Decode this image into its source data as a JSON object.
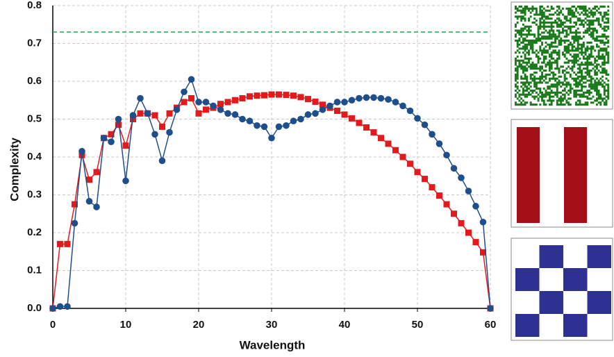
{
  "chart_data": {
    "type": "line",
    "x_label": "Wavelength",
    "y_label": "Complexity",
    "x": [
      0,
      1,
      2,
      3,
      4,
      5,
      6,
      7,
      8,
      9,
      10,
      11,
      12,
      13,
      14,
      15,
      16,
      17,
      18,
      19,
      20,
      21,
      22,
      23,
      24,
      25,
      26,
      27,
      28,
      29,
      30,
      31,
      32,
      33,
      34,
      35,
      36,
      37,
      38,
      39,
      40,
      41,
      42,
      43,
      44,
      45,
      46,
      47,
      48,
      49,
      50,
      51,
      52,
      53,
      54,
      55,
      56,
      57,
      58,
      59,
      60
    ],
    "series": [
      {
        "color": "#e31a1c",
        "marker": "square",
        "values": [
          0,
          0.17,
          0.17,
          0.275,
          0.405,
          0.34,
          0.36,
          0.45,
          0.46,
          0.485,
          0.43,
          0.5,
          0.515,
          0.515,
          0.51,
          0.48,
          0.515,
          0.53,
          0.545,
          0.555,
          0.515,
          0.525,
          0.53,
          0.54,
          0.545,
          0.55,
          0.555,
          0.56,
          0.562,
          0.563,
          0.565,
          0.565,
          0.564,
          0.562,
          0.558,
          0.553,
          0.546,
          0.538,
          0.53,
          0.522,
          0.512,
          0.502,
          0.49,
          0.478,
          0.465,
          0.45,
          0.435,
          0.418,
          0.4,
          0.382,
          0.36,
          0.342,
          0.32,
          0.298,
          0.275,
          0.25,
          0.225,
          0.2,
          0.175,
          0.148,
          0
        ]
      },
      {
        "color": "#1f4e8c",
        "marker": "circle",
        "values": [
          0,
          0.005,
          0.005,
          0.225,
          0.415,
          0.283,
          0.268,
          0.45,
          0.44,
          0.5,
          0.337,
          0.51,
          0.555,
          0.515,
          0.46,
          0.39,
          0.465,
          0.525,
          0.572,
          0.605,
          0.545,
          0.545,
          0.535,
          0.525,
          0.515,
          0.512,
          0.5,
          0.495,
          0.483,
          0.48,
          0.45,
          0.48,
          0.483,
          0.495,
          0.5,
          0.512,
          0.515,
          0.525,
          0.535,
          0.545,
          0.545,
          0.55,
          0.555,
          0.557,
          0.557,
          0.555,
          0.552,
          0.545,
          0.535,
          0.522,
          0.502,
          0.485,
          0.46,
          0.435,
          0.405,
          0.37,
          0.345,
          0.31,
          0.27,
          0.228,
          0
        ]
      }
    ],
    "hline": {
      "value": 0.73,
      "color": "#22a84a"
    },
    "xlim": [
      0,
      60
    ],
    "xticks": [
      0,
      10,
      20,
      30,
      40,
      50,
      60
    ],
    "ylim": [
      0,
      0.8
    ],
    "yticks": [
      {
        "value": 0,
        "label": "0.0"
      },
      {
        "value": 0.1,
        "label": "0.1"
      },
      {
        "value": 0.2,
        "label": "0.2"
      },
      {
        "value": 0.3,
        "label": "0.3"
      },
      {
        "value": 0.4,
        "label": "0.4"
      },
      {
        "value": 0.5,
        "label": "0.5"
      },
      {
        "value": 0.6,
        "label": "0.6"
      },
      {
        "value": 0.7,
        "label": "0.7"
      },
      {
        "value": 0.8,
        "label": "0.8"
      }
    ],
    "grid": true
  }
}
